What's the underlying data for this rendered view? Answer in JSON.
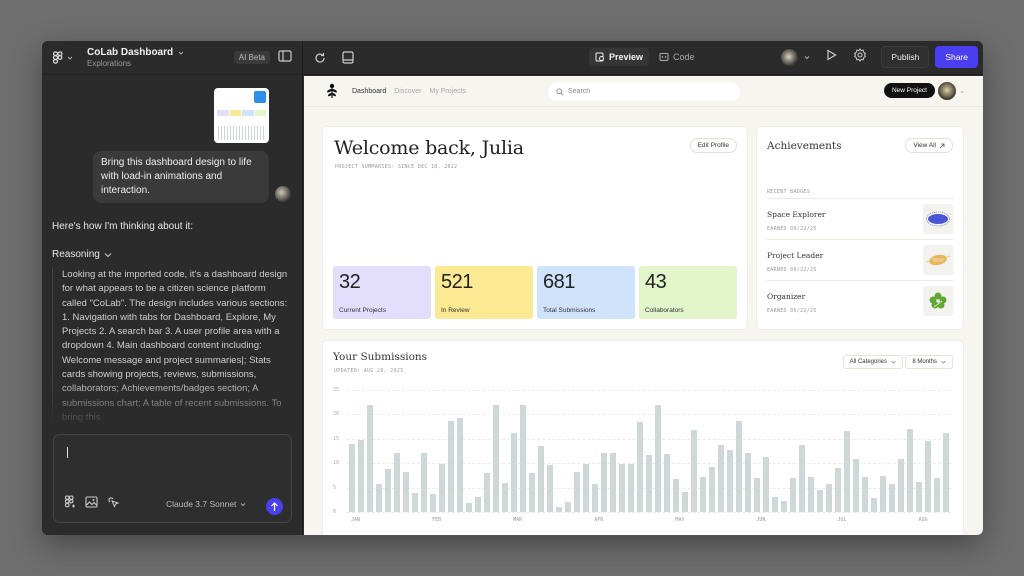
{
  "left_panel": {
    "project_title": "CoLab Dashboard",
    "project_subtitle": "Explorations",
    "ai_badge": "AI Beta",
    "user_message": "Bring this dashboard design to life with load-in animations and interaction.",
    "assistant_intro": "Here's how I'm thinking about it:",
    "reasoning_label": "Reasoning",
    "reasoning_text": "Looking at the imported code, it's a dashboard design for what appears to be a citizen science platform called \"CoLab\". The design includes various sections: 1. Navigation with tabs for Dashboard, Explore, My Projects 2. A search bar 3. A user profile area with a dropdown 4. Main dashboard content including: Welcome message and project summaries|; Stats cards showing projects, reviews, submissions, collaborators; Achievements/badges section; A submissions chart; A table of recent submissions. To bring this",
    "composer": {
      "value": "",
      "model": "Claude 3.7 Sonnet"
    }
  },
  "toolbar": {
    "tabs": [
      {
        "label": "Preview",
        "active": true
      },
      {
        "label": "Code",
        "active": false
      }
    ],
    "publish_label": "Publish",
    "share_label": "Share",
    "accent": "#4a3ff0"
  },
  "app": {
    "nav": {
      "links": [
        {
          "label": "Dashboard",
          "active": true
        },
        {
          "label": "Discover",
          "active": false
        },
        {
          "label": "My Projects",
          "active": false
        }
      ],
      "search_placeholder": "Search",
      "new_project_label": "New Project"
    },
    "welcome": {
      "title": "Welcome back, Julia",
      "subtitle": "PROJECT SUMMARIES: SINCE DEC 10, 2022",
      "edit_label": "Edit Profile",
      "stats": [
        {
          "value": "32",
          "label": "Current Projects",
          "color": "#e2defc"
        },
        {
          "value": "521",
          "label": "In Review",
          "color": "#fbe993"
        },
        {
          "value": "681",
          "label": "Total Submissions",
          "color": "#cfe4fb"
        },
        {
          "value": "43",
          "label": "Collaborators",
          "color": "#e2f5cb"
        }
      ]
    },
    "achievements": {
      "title": "Achievements",
      "view_all_label": "View All",
      "section_label": "RECENT BADGES",
      "badges": [
        {
          "name": "Space Explorer",
          "earned": "EARNED 09/22/25",
          "icon": "space-badge-icon",
          "color": "#4a55d6"
        },
        {
          "name": "Project Leader",
          "earned": "EARNED 09/22/25",
          "icon": "leader-badge-icon",
          "color": "#e6b65a"
        },
        {
          "name": "Organizer",
          "earned": "EARNED 09/22/25",
          "icon": "organizer-badge-icon",
          "color": "#5ea836"
        }
      ]
    },
    "submissions": {
      "title": "Your Submissions",
      "updated": "UPDATED: AUG 20, 2025",
      "category_filter": "All Categories",
      "range_filter": "8 Months"
    }
  },
  "chart_data": {
    "type": "bar",
    "title": "Your Submissions",
    "xlabel": "",
    "ylabel": "",
    "ylim": [
      0,
      25
    ],
    "yticks": [
      0,
      5,
      10,
      15,
      20,
      25
    ],
    "grid": true,
    "month_labels": [
      "JAN",
      "FEB",
      "MAR",
      "APR",
      "MAY",
      "JUN",
      "JUL",
      "AUG"
    ],
    "values": [
      14,
      14.8,
      22,
      5.7,
      8.8,
      12,
      8.2,
      3.8,
      12,
      3.6,
      9.8,
      18.7,
      19.3,
      1.8,
      3.1,
      8,
      22,
      6,
      16.2,
      22,
      7.9,
      13.6,
      9.7,
      1.1,
      2,
      8.2,
      9.8,
      5.7,
      12,
      12,
      9.8,
      9.8,
      18.5,
      11.7,
      22,
      11.8,
      6.8,
      4,
      16.9,
      7.2,
      9.3,
      13.7,
      12.8,
      18.7,
      12,
      7,
      11.2,
      3.1,
      2.3,
      6.9,
      13.7,
      7.1,
      4.5,
      5.7,
      9,
      16.6,
      10.8,
      7.1,
      2.9,
      7.3,
      5.7,
      10.8,
      17.1,
      6.2,
      14.5,
      6.9,
      16.1
    ],
    "bar_color": "#cfd8d8"
  }
}
